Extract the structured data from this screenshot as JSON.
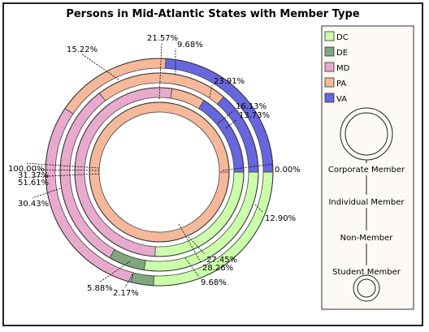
{
  "chart_data": {
    "type": "pie",
    "subtype": "multi-level-donut",
    "title": "Persons in Mid-Atlantic States with Member Type",
    "categories": [
      "DC",
      "DE",
      "MD",
      "PA",
      "VA"
    ],
    "colors": {
      "DC": "#ccffaa",
      "DE": "#7fa87f",
      "MD": "#e8aacc",
      "PA": "#f5b89a",
      "VA": "#6666dd"
    },
    "series": [
      {
        "name": "Corporate Member",
        "values": [
          0,
          0,
          0,
          100.0,
          0
        ],
        "labels": [
          "",
          "",
          "",
          "100.00%",
          ""
        ]
      },
      {
        "name": "Individual Member",
        "values": [
          25.81,
          0,
          51.61,
          6.45,
          16.13
        ],
        "labels": [
          "",
          "",
          "51.61%",
          "",
          "16.13%"
        ]
      },
      {
        "name": "Non-Member",
        "values": [
          27.45,
          5.88,
          31.37,
          21.57,
          13.73
        ],
        "labels": [
          "27.45%",
          "5.88%",
          "31.37%",
          "21.57%",
          "13.73%"
        ]
      },
      {
        "name": "Student Member",
        "values": [
          25.81,
          3.23,
          30.43,
          16.45,
          24.08
        ],
        "labels": [
          "",
          "",
          "30.43%",
          "",
          ""
        ]
      }
    ],
    "extra_labels": [
      "0.00%",
      "9.68%",
      "12.90%",
      "28.26%",
      "9.68%",
      "2.17%",
      "15.22%",
      "23.91%"
    ],
    "legend": {
      "placement": "right",
      "items": [
        "DC",
        "DE",
        "MD",
        "PA",
        "VA"
      ],
      "ring_labels": [
        "Corporate Member",
        "Individual Member",
        "Non-Member",
        "Student Member"
      ]
    }
  }
}
